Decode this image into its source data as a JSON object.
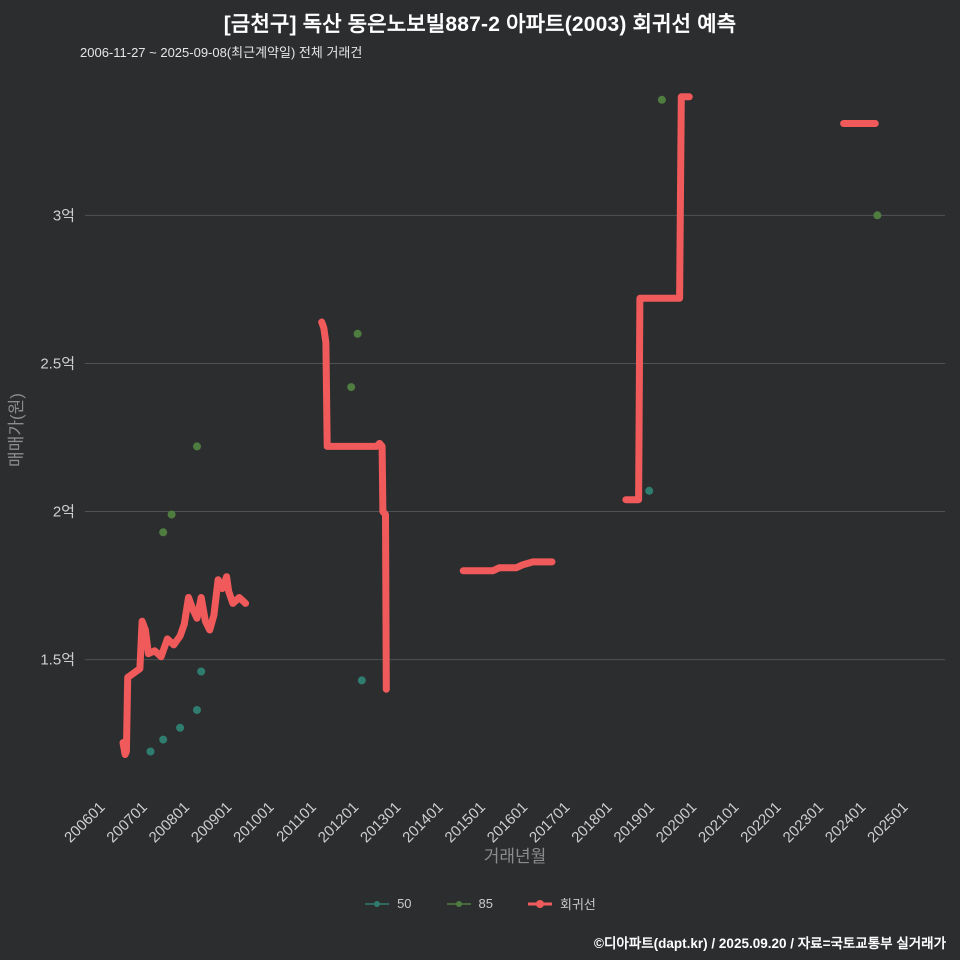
{
  "page": {
    "title": "[금천구] 독산 동은노보빌887-2 아파트(2003) 회귀선 예측",
    "subtitle": "2006-11-27 ~ 2025-09-08(최근계약일) 전체 거래건",
    "footer": "©디아파트(dapt.kr) / 2025.09.20 / 자료=국토교통부 실거래가"
  },
  "colors": {
    "background": "#2c2d2f",
    "grid": "#4f5254",
    "tick_text": "#cfcfcf",
    "axis_title": "#8a8c8e",
    "legend_text": "#c9c9c9"
  },
  "chart_data": {
    "type": "scatter",
    "title": "[금천구] 독산 동은노보빌887-2 아파트(2003) 회귀선 예측",
    "subtitle": "2006-11-27 ~ 2025-09-08(최근계약일) 전체 거래건",
    "xlabel": "거래년월",
    "ylabel": "매매가(원)",
    "xlim": [
      2005.65,
      2026.0
    ],
    "ylim": [
      1.06,
      3.44
    ],
    "grid": "horizontal",
    "legend_position": "bottom",
    "y_ticks": [
      {
        "label": "3억",
        "value": 3.0
      },
      {
        "label": "2.5억",
        "value": 2.5
      },
      {
        "label": "2억",
        "value": 2.0
      },
      {
        "label": "1.5억",
        "value": 1.5
      }
    ],
    "x_ticks": [
      {
        "label": "200601",
        "value": 2006
      },
      {
        "label": "200701",
        "value": 2007
      },
      {
        "label": "200801",
        "value": 2008
      },
      {
        "label": "200901",
        "value": 2009
      },
      {
        "label": "201001",
        "value": 2010
      },
      {
        "label": "201101",
        "value": 2011
      },
      {
        "label": "201201",
        "value": 2012
      },
      {
        "label": "201301",
        "value": 2013
      },
      {
        "label": "201401",
        "value": 2014
      },
      {
        "label": "201501",
        "value": 2015
      },
      {
        "label": "201601",
        "value": 2016
      },
      {
        "label": "201701",
        "value": 2017
      },
      {
        "label": "201801",
        "value": 2018
      },
      {
        "label": "201901",
        "value": 2019
      },
      {
        "label": "202001",
        "value": 2020
      },
      {
        "label": "202101",
        "value": 2021
      },
      {
        "label": "202201",
        "value": 2022
      },
      {
        "label": "202301",
        "value": 2023
      },
      {
        "label": "202401",
        "value": 2024
      },
      {
        "label": "202501",
        "value": 2025
      }
    ],
    "series": [
      {
        "name": "50",
        "type": "scatter",
        "color": "#2e7d6f",
        "points": [
          [
            2007.2,
            1.19
          ],
          [
            2007.5,
            1.23
          ],
          [
            2007.9,
            1.27
          ],
          [
            2008.3,
            1.33
          ],
          [
            2008.4,
            1.46
          ],
          [
            2012.2,
            1.43
          ],
          [
            2019.0,
            2.07
          ]
        ]
      },
      {
        "name": "85",
        "type": "scatter",
        "color": "#4e7d3f",
        "points": [
          [
            2007.5,
            1.93
          ],
          [
            2007.7,
            1.99
          ],
          [
            2008.3,
            2.22
          ],
          [
            2011.95,
            2.42
          ],
          [
            2012.1,
            2.6
          ],
          [
            2019.3,
            3.39
          ],
          [
            2024.4,
            3.0
          ]
        ]
      },
      {
        "name": "회귀선",
        "type": "line",
        "color": "#f15a5a",
        "width": 7,
        "segments": [
          [
            [
              2006.55,
              1.22
            ],
            [
              2006.6,
              1.18
            ],
            [
              2006.63,
              1.19
            ],
            [
              2006.66,
              1.44
            ],
            [
              2006.95,
              1.47
            ],
            [
              2007.0,
              1.63
            ],
            [
              2007.08,
              1.6
            ],
            [
              2007.15,
              1.52
            ],
            [
              2007.3,
              1.53
            ],
            [
              2007.45,
              1.51
            ],
            [
              2007.6,
              1.57
            ],
            [
              2007.75,
              1.55
            ],
            [
              2007.9,
              1.58
            ],
            [
              2008.0,
              1.62
            ],
            [
              2008.1,
              1.71
            ],
            [
              2008.2,
              1.67
            ],
            [
              2008.3,
              1.64
            ],
            [
              2008.4,
              1.71
            ],
            [
              2008.5,
              1.63
            ],
            [
              2008.6,
              1.6
            ],
            [
              2008.7,
              1.65
            ],
            [
              2008.8,
              1.77
            ],
            [
              2008.9,
              1.74
            ],
            [
              2009.0,
              1.78
            ],
            [
              2009.05,
              1.73
            ],
            [
              2009.15,
              1.69
            ],
            [
              2009.3,
              1.71
            ],
            [
              2009.45,
              1.69
            ]
          ],
          [
            [
              2011.25,
              2.64
            ],
            [
              2011.3,
              2.62
            ],
            [
              2011.35,
              2.57
            ],
            [
              2011.38,
              2.22
            ],
            [
              2012.55,
              2.22
            ],
            [
              2012.62,
              2.23
            ],
            [
              2012.68,
              2.22
            ],
            [
              2012.7,
              2.0
            ],
            [
              2012.76,
              1.99
            ],
            [
              2012.78,
              1.4
            ]
          ],
          [
            [
              2014.6,
              1.8
            ],
            [
              2015.3,
              1.8
            ],
            [
              2015.45,
              1.81
            ],
            [
              2015.85,
              1.81
            ],
            [
              2016.0,
              1.82
            ],
            [
              2016.25,
              1.83
            ],
            [
              2016.7,
              1.83
            ]
          ],
          [
            [
              2018.45,
              2.04
            ],
            [
              2018.75,
              2.04
            ],
            [
              2018.78,
              2.72
            ],
            [
              2019.72,
              2.72
            ],
            [
              2019.76,
              3.4
            ],
            [
              2019.95,
              3.4
            ]
          ],
          [
            [
              2023.6,
              3.31
            ],
            [
              2024.35,
              3.31
            ]
          ]
        ]
      }
    ]
  }
}
